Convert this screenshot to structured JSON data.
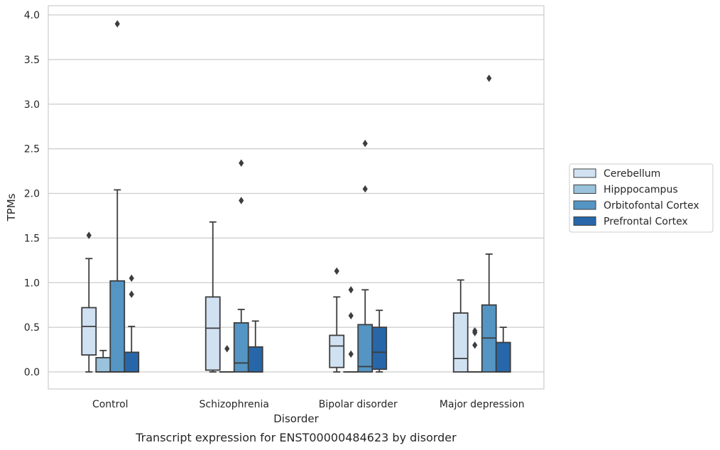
{
  "chart_data": {
    "type": "box",
    "caption": "Transcript expression for ENST00000484623 by disorder",
    "xlabel": "Disorder",
    "ylabel": "TPMs",
    "ylim": [
      -0.19,
      4.1
    ],
    "yticks": [
      0.0,
      0.5,
      1.0,
      1.5,
      2.0,
      2.5,
      3.0,
      3.5,
      4.0
    ],
    "ytick_labels": [
      "0.0",
      "0.5",
      "1.0",
      "1.5",
      "2.0",
      "2.5",
      "3.0",
      "3.5",
      "4.0"
    ],
    "grid": "horizontal",
    "legend_position": "right",
    "categories": [
      "Control",
      "Schizophrenia",
      "Bipolar disorder",
      "Major depression"
    ],
    "series": [
      {
        "name": "Cerebellum",
        "color": "#d0e1f2",
        "boxes": [
          {
            "whisker_low": 0.0,
            "q1": 0.19,
            "median": 0.51,
            "q3": 0.72,
            "whisker_high": 1.27,
            "outliers": [
              1.53
            ]
          },
          {
            "whisker_low": 0.0,
            "q1": 0.02,
            "median": 0.49,
            "q3": 0.84,
            "whisker_high": 1.68,
            "outliers": []
          },
          {
            "whisker_low": 0.0,
            "q1": 0.05,
            "median": 0.29,
            "q3": 0.41,
            "whisker_high": 0.84,
            "outliers": [
              1.13
            ]
          },
          {
            "whisker_low": 0.0,
            "q1": 0.0,
            "median": 0.15,
            "q3": 0.66,
            "whisker_high": 1.03,
            "outliers": []
          }
        ]
      },
      {
        "name": "Hipppocampus",
        "color": "#9ac2dc",
        "boxes": [
          {
            "whisker_low": 0.0,
            "q1": 0.0,
            "median": 0.0,
            "q3": 0.16,
            "whisker_high": 0.24,
            "outliers": []
          },
          {
            "whisker_low": 0.0,
            "q1": 0.0,
            "median": 0.0,
            "q3": 0.0,
            "whisker_high": 0.0,
            "outliers": [
              0.26
            ]
          },
          {
            "whisker_low": 0.0,
            "q1": 0.0,
            "median": 0.0,
            "q3": 0.0,
            "whisker_high": 0.0,
            "outliers": [
              0.2,
              0.63,
              0.92
            ]
          },
          {
            "whisker_low": 0.0,
            "q1": 0.0,
            "median": 0.0,
            "q3": 0.0,
            "whisker_high": 0.0,
            "outliers": [
              0.3,
              0.44,
              0.46
            ]
          }
        ]
      },
      {
        "name": "Orbitofontal Cortex",
        "color": "#5495c4",
        "boxes": [
          {
            "whisker_low": 0.0,
            "q1": 0.0,
            "median": 0.0,
            "q3": 1.02,
            "whisker_high": 2.04,
            "outliers": [
              3.9
            ]
          },
          {
            "whisker_low": 0.0,
            "q1": 0.0,
            "median": 0.1,
            "q3": 0.55,
            "whisker_high": 0.7,
            "outliers": [
              1.92,
              2.34
            ]
          },
          {
            "whisker_low": 0.0,
            "q1": 0.0,
            "median": 0.06,
            "q3": 0.53,
            "whisker_high": 0.92,
            "outliers": [
              2.05,
              2.56
            ]
          },
          {
            "whisker_low": 0.0,
            "q1": 0.0,
            "median": 0.38,
            "q3": 0.75,
            "whisker_high": 1.32,
            "outliers": [
              3.29
            ]
          }
        ]
      },
      {
        "name": "Prefrontal Cortex",
        "color": "#2767a9",
        "boxes": [
          {
            "whisker_low": 0.0,
            "q1": 0.0,
            "median": 0.0,
            "q3": 0.22,
            "whisker_high": 0.51,
            "outliers": [
              0.87,
              1.05
            ]
          },
          {
            "whisker_low": 0.0,
            "q1": 0.0,
            "median": 0.0,
            "q3": 0.28,
            "whisker_high": 0.57,
            "outliers": []
          },
          {
            "whisker_low": 0.0,
            "q1": 0.03,
            "median": 0.22,
            "q3": 0.5,
            "whisker_high": 0.69,
            "outliers": []
          },
          {
            "whisker_low": 0.0,
            "q1": 0.0,
            "median": 0.0,
            "q3": 0.33,
            "whisker_high": 0.5,
            "outliers": []
          }
        ]
      }
    ]
  }
}
